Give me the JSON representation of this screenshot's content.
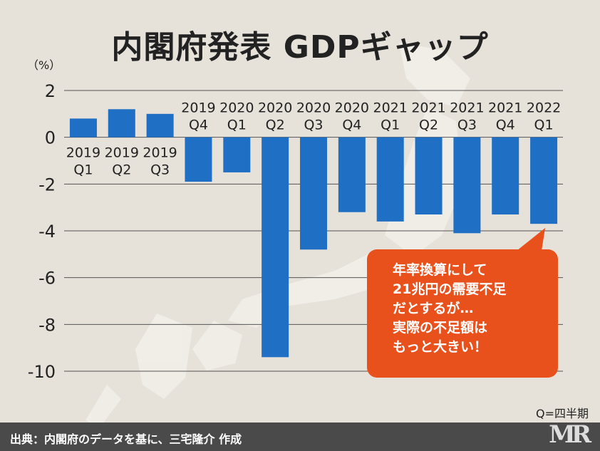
{
  "title": "内閣府発表 GDPギャップ",
  "chart_data": {
    "type": "bar",
    "unit_label": "（%）",
    "ylim": [
      -10,
      2
    ],
    "yticks": [
      2,
      0,
      -2,
      -4,
      -6,
      -8,
      -10
    ],
    "categories": [
      {
        "year": "2019",
        "q": "Q1"
      },
      {
        "year": "2019",
        "q": "Q2"
      },
      {
        "year": "2019",
        "q": "Q3"
      },
      {
        "year": "2019",
        "q": "Q4"
      },
      {
        "year": "2020",
        "q": "Q1"
      },
      {
        "year": "2020",
        "q": "Q2"
      },
      {
        "year": "2020",
        "q": "Q3"
      },
      {
        "year": "2020",
        "q": "Q4"
      },
      {
        "year": "2021",
        "q": "Q1"
      },
      {
        "year": "2021",
        "q": "Q2"
      },
      {
        "year": "2021",
        "q": "Q3"
      },
      {
        "year": "2021",
        "q": "Q4"
      },
      {
        "year": "2022",
        "q": "Q1"
      }
    ],
    "values": [
      0.8,
      1.2,
      1.0,
      -1.9,
      -1.5,
      -9.4,
      -4.8,
      -3.2,
      -3.6,
      -3.3,
      -4.1,
      -3.3,
      -3.7
    ],
    "bar_color": "#1f6fc5",
    "grid": true
  },
  "callout": {
    "lines": [
      "年率換算にして",
      "21兆円の需要不足",
      "だとするが…",
      "実際の不足額は",
      "もっと大きい！"
    ],
    "color": "#e8501c"
  },
  "note": "Q=四半期",
  "footer": "出典：内閣府のデータを基に、三宅隆介 作成",
  "logo": "MR"
}
